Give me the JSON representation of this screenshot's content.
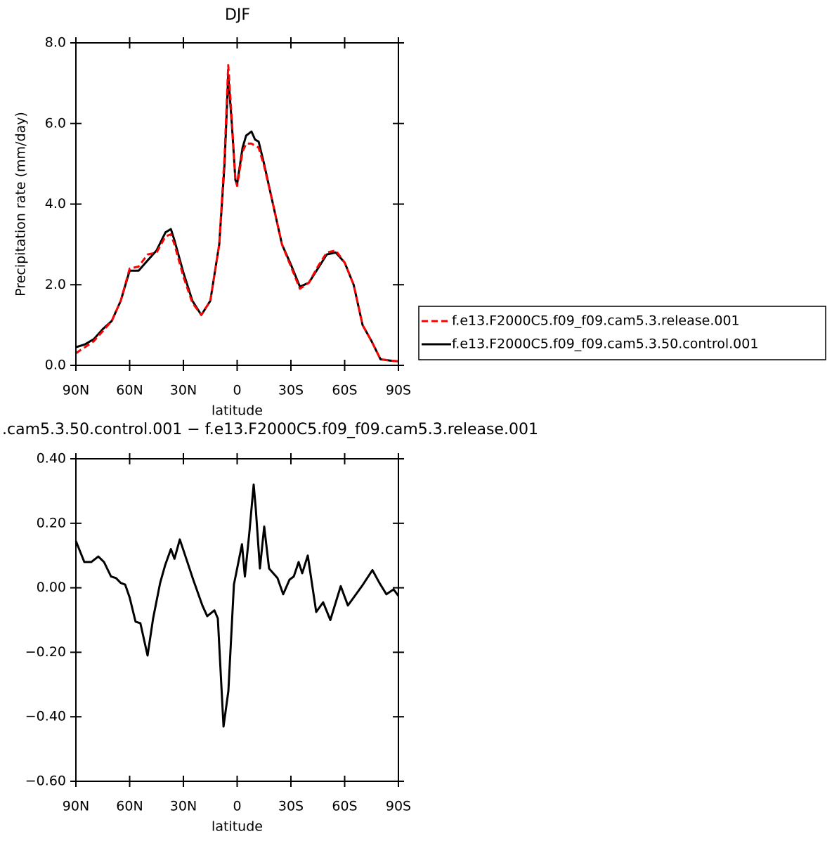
{
  "chart_data": [
    {
      "type": "line",
      "title": "DJF",
      "xlabel": "latitude",
      "ylabel": "Precipitation rate (mm/day)",
      "x": [
        90,
        85,
        80,
        75,
        70,
        65,
        60,
        55,
        50,
        45,
        40,
        37,
        35,
        30,
        25,
        20,
        15,
        10,
        7,
        5,
        3,
        1,
        0,
        -3,
        -5,
        -8,
        -10,
        -12,
        -15,
        -20,
        -25,
        -30,
        -35,
        -40,
        -45,
        -50,
        -55,
        -60,
        -65,
        -70,
        -75,
        -80,
        -85,
        -90
      ],
      "series": [
        {
          "name": "f.e13.F2000C5.f09_f09.cam5.3.release.001",
          "color": "#ff0000",
          "line_style": "dashed",
          "values": [
            0.3,
            0.45,
            0.6,
            0.85,
            1.1,
            1.6,
            2.4,
            2.45,
            2.75,
            2.8,
            3.2,
            3.25,
            3.0,
            2.2,
            1.55,
            1.25,
            1.6,
            3.0,
            5.2,
            7.45,
            6.1,
            4.6,
            4.45,
            5.3,
            5.5,
            5.5,
            5.45,
            5.4,
            4.95,
            4.0,
            3.0,
            2.45,
            1.9,
            2.05,
            2.45,
            2.8,
            2.85,
            2.55,
            2.0,
            1.0,
            0.6,
            0.15,
            0.12,
            0.1
          ]
        },
        {
          "name": "f.e13.F2000C5.f09_f09.cam5.3.50.control.001",
          "color": "#000000",
          "line_style": "solid",
          "values": [
            0.45,
            0.52,
            0.65,
            0.9,
            1.1,
            1.6,
            2.35,
            2.35,
            2.6,
            2.85,
            3.3,
            3.38,
            3.1,
            2.3,
            1.6,
            1.25,
            1.6,
            3.0,
            5.0,
            7.2,
            6.0,
            4.6,
            4.5,
            5.4,
            5.7,
            5.8,
            5.6,
            5.55,
            5.0,
            4.0,
            3.0,
            2.5,
            1.95,
            2.05,
            2.4,
            2.75,
            2.8,
            2.55,
            2.0,
            1.0,
            0.6,
            0.15,
            0.12,
            0.1
          ]
        }
      ],
      "xlim": [
        90,
        -90
      ],
      "xticks": [
        {
          "value": 90,
          "label": "90N"
        },
        {
          "value": 60,
          "label": "60N"
        },
        {
          "value": 30,
          "label": "30N"
        },
        0,
        {
          "value": -30,
          "label": "30S"
        },
        {
          "value": -60,
          "label": "60S"
        },
        {
          "value": -90,
          "label": "90S"
        }
      ],
      "ylim": [
        0,
        8
      ],
      "yticks": [
        {
          "value": 0,
          "label": "0.0"
        },
        {
          "value": 2,
          "label": "2.0"
        },
        {
          "value": 4,
          "label": "4.0"
        },
        {
          "value": 6,
          "label": "6.0"
        },
        {
          "value": 8,
          "label": "8.0"
        }
      ],
      "legend": "outside-right"
    },
    {
      "type": "line",
      "title": ".cam5.3.50.control.001 − f.e13.F2000C5.f09_f09.cam5.3.release.001",
      "xlabel": "latitude",
      "x": [
        90,
        85.3,
        81.4,
        77.5,
        74.3,
        70.4,
        67.6,
        65,
        62.5,
        60,
        56.7,
        54,
        50,
        46.9,
        43,
        40.2,
        37,
        35,
        32,
        28.4,
        24.5,
        19.4,
        16.7,
        12.7,
        10.8,
        7.6,
        4.9,
        1.8,
        0,
        -2.7,
        -4.3,
        -6.7,
        -9.2,
        -10.4,
        -12.7,
        -15.1,
        -17.8,
        -22.5,
        -25.7,
        -29.2,
        -31.6,
        -34.3,
        -36.3,
        -39.4,
        -44.1,
        -48,
        -52,
        -57.8,
        -61.8,
        -65.7,
        -69.6,
        -75.5,
        -79.4,
        -83.3,
        -87.3,
        -90
      ],
      "values": [
        0.145,
        0.08,
        0.08,
        0.097,
        0.08,
        0.035,
        0.03,
        0.015,
        0.01,
        -0.03,
        -0.105,
        -0.11,
        -0.21,
        -0.095,
        0.015,
        0.07,
        0.12,
        0.09,
        0.15,
        0.09,
        0.025,
        -0.055,
        -0.088,
        -0.07,
        -0.095,
        -0.43,
        -0.32,
        0.01,
        0.06,
        0.135,
        0.035,
        0.165,
        0.32,
        0.245,
        0.06,
        0.19,
        0.06,
        0.03,
        -0.02,
        0.025,
        0.035,
        0.08,
        0.045,
        0.1,
        -0.075,
        -0.045,
        -0.1,
        0.005,
        -0.055,
        -0.025,
        0.005,
        0.055,
        0.015,
        -0.02,
        -0.005,
        -0.025
      ],
      "color": "#000000",
      "xlim": [
        90,
        -90
      ],
      "xticks": [
        {
          "value": 90,
          "label": "90N"
        },
        {
          "value": 60,
          "label": "60N"
        },
        {
          "value": 30,
          "label": "30N"
        },
        0,
        {
          "value": -30,
          "label": "30S"
        },
        {
          "value": -60,
          "label": "60S"
        },
        {
          "value": -90,
          "label": "90S"
        }
      ],
      "ylim": [
        -0.6,
        0.4
      ],
      "yticks": [
        {
          "value": -0.6,
          "label": "−0.60"
        },
        {
          "value": -0.4,
          "label": "−0.40"
        },
        {
          "value": -0.2,
          "label": "−0.20"
        },
        {
          "value": 0,
          "label": "0.00"
        },
        {
          "value": 0.2,
          "label": "0.20"
        },
        {
          "value": 0.4,
          "label": "0.40"
        }
      ]
    }
  ]
}
